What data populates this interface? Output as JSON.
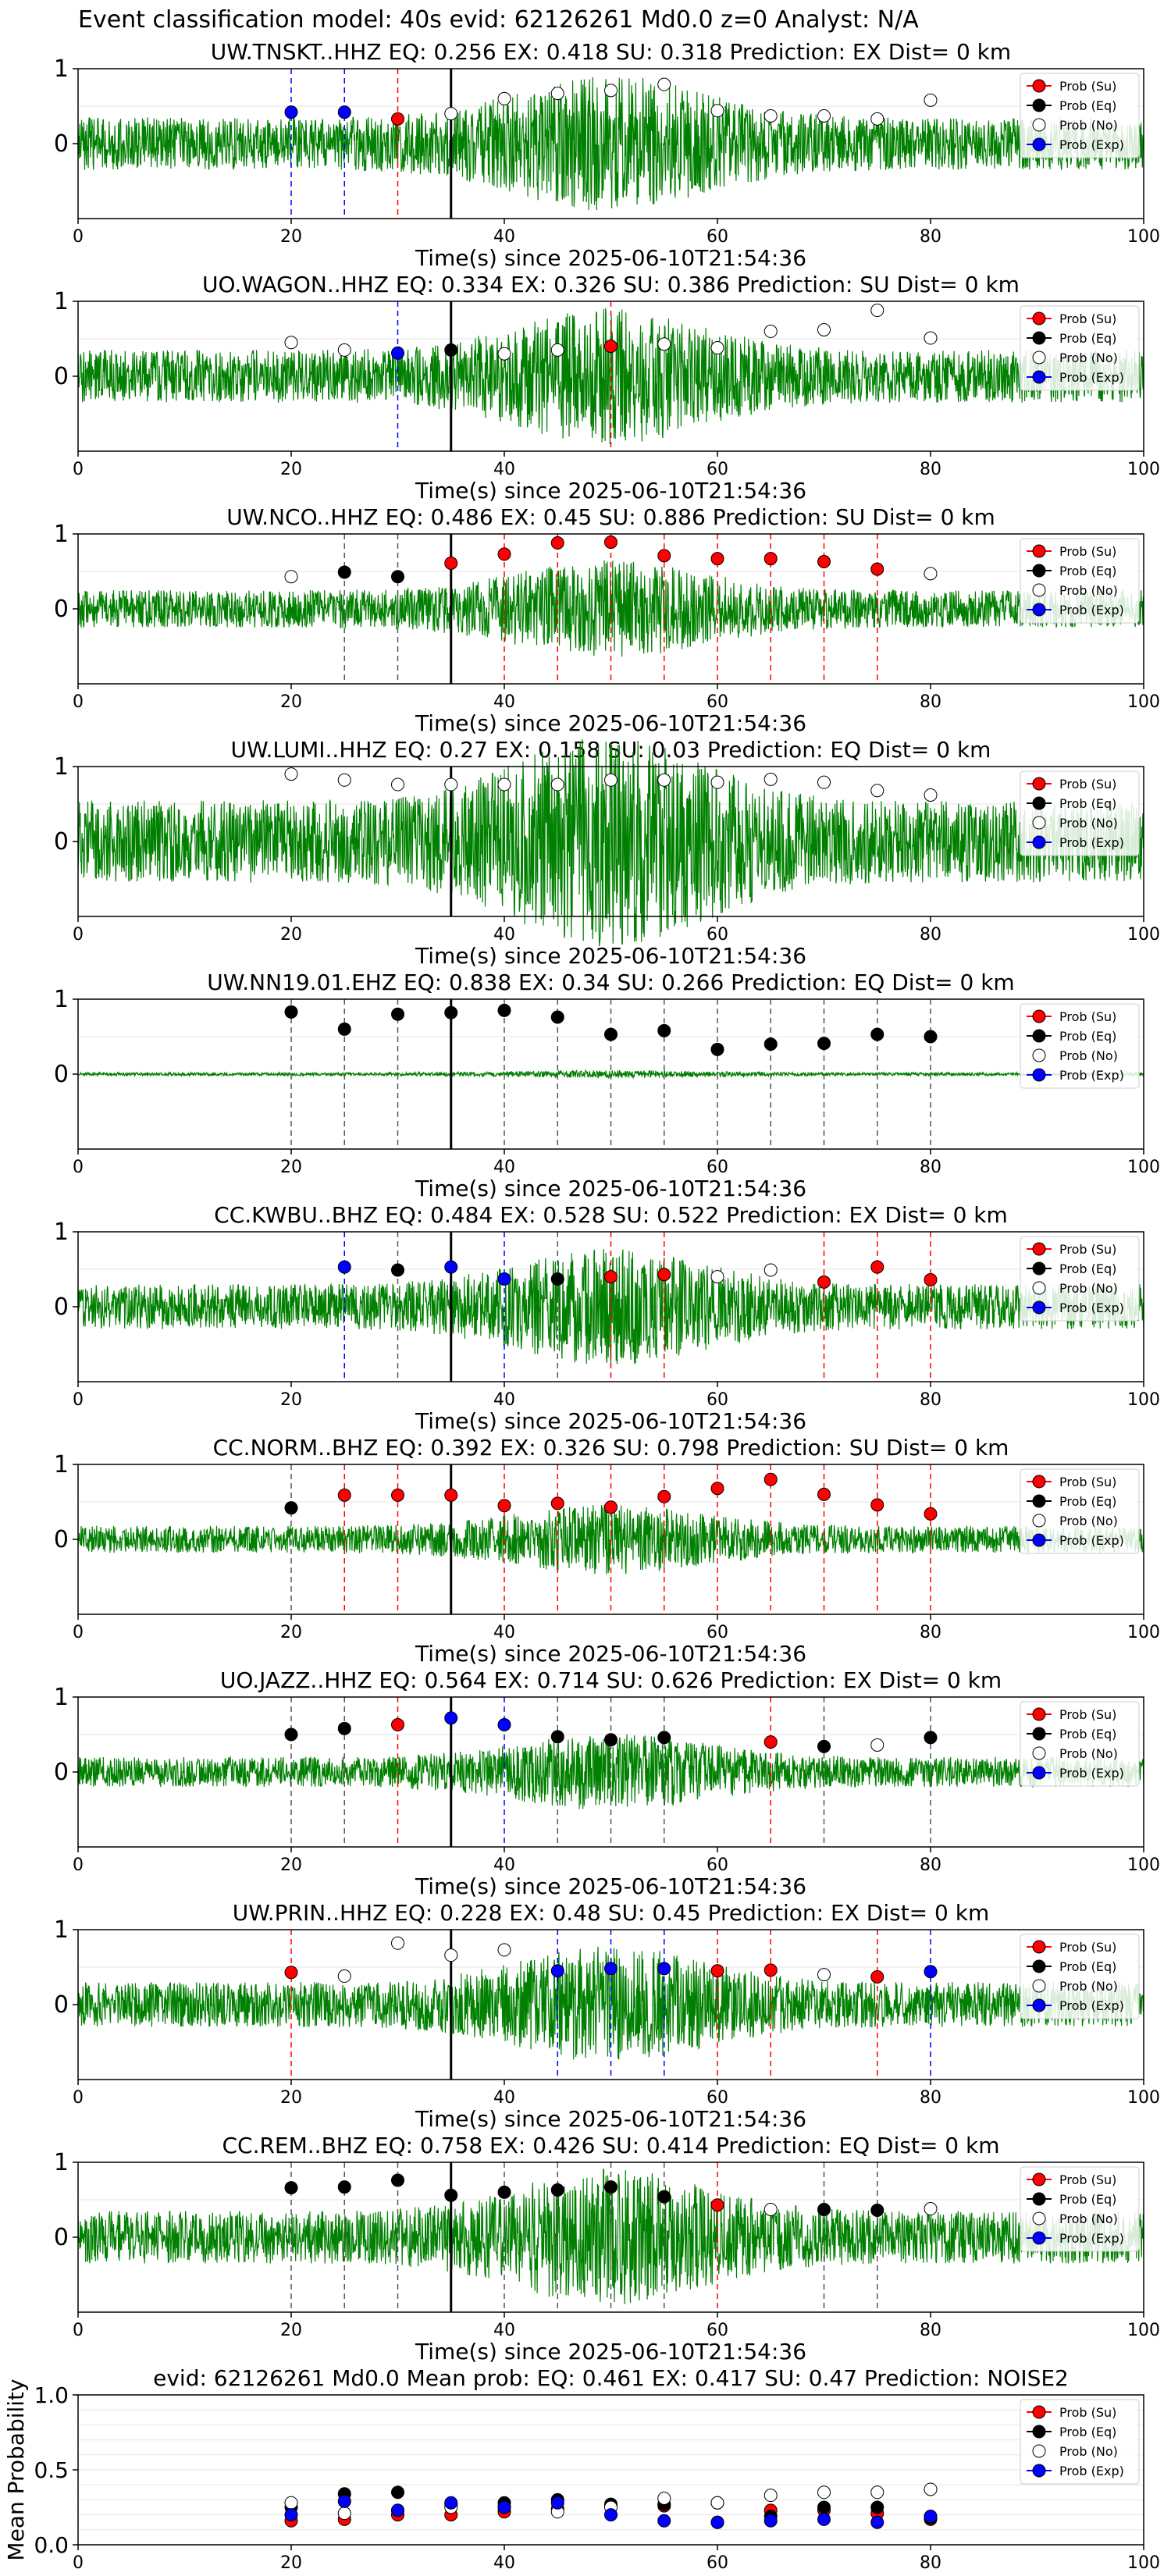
{
  "figure": {
    "suptitle": "Event classification model: 40s evid: 62126261 Md0.0 z=0 Analyst: N/A"
  },
  "legend_labels": [
    "Prob (Su)",
    "Prob (Eq)",
    "Prob (No)",
    "Prob (Exp)"
  ],
  "colors": {
    "su": "#ff0000",
    "eq": "#000000",
    "no": "#ffffff",
    "exp": "#0000ff",
    "trace": "#008000",
    "pick_line": "#000000"
  },
  "chart_data": [
    {
      "type": "line",
      "station": "UW.TNSKT..HHZ",
      "title": "UW.TNSKT..HHZ   EQ: 0.256  EX: 0.418  SU: 0.318   Prediction: EX    Dist= 0 km",
      "xlabel": "Time(s) since 2025-06-10T21:54:36",
      "xlim": [
        0,
        100
      ],
      "ylim": [
        -1,
        1
      ],
      "xticks": [
        "0",
        "20",
        "40",
        "60",
        "80",
        "100"
      ],
      "yticks": [
        "0",
        "1"
      ],
      "pick_time": 35,
      "trace_amplitude": 0.35,
      "points": [
        {
          "x": 20,
          "y": 0.42,
          "cls": "exp"
        },
        {
          "x": 25,
          "y": 0.42,
          "cls": "exp"
        },
        {
          "x": 30,
          "y": 0.33,
          "cls": "su"
        },
        {
          "x": 35,
          "y": 0.4,
          "cls": "no"
        },
        {
          "x": 40,
          "y": 0.6,
          "cls": "no"
        },
        {
          "x": 45,
          "y": 0.67,
          "cls": "no"
        },
        {
          "x": 50,
          "y": 0.71,
          "cls": "no"
        },
        {
          "x": 55,
          "y": 0.79,
          "cls": "no"
        },
        {
          "x": 60,
          "y": 0.44,
          "cls": "no"
        },
        {
          "x": 65,
          "y": 0.37,
          "cls": "no"
        },
        {
          "x": 70,
          "y": 0.37,
          "cls": "no"
        },
        {
          "x": 75,
          "y": 0.33,
          "cls": "no"
        },
        {
          "x": 80,
          "y": 0.58,
          "cls": "no"
        }
      ]
    },
    {
      "type": "line",
      "station": "UO.WAGON..HHZ",
      "title": "UO.WAGON..HHZ   EQ: 0.334  EX: 0.326  SU: 0.386   Prediction: SU    Dist= 0 km",
      "xlabel": "Time(s) since 2025-06-10T21:54:36",
      "xlim": [
        0,
        100
      ],
      "ylim": [
        -1,
        1
      ],
      "xticks": [
        "0",
        "20",
        "40",
        "60",
        "80",
        "100"
      ],
      "yticks": [
        "0",
        "1"
      ],
      "pick_time": 35,
      "trace_amplitude": 0.35,
      "points": [
        {
          "x": 20,
          "y": 0.45,
          "cls": "no"
        },
        {
          "x": 25,
          "y": 0.35,
          "cls": "no"
        },
        {
          "x": 30,
          "y": 0.31,
          "cls": "exp"
        },
        {
          "x": 35,
          "y": 0.35,
          "cls": "eq"
        },
        {
          "x": 40,
          "y": 0.3,
          "cls": "no"
        },
        {
          "x": 45,
          "y": 0.35,
          "cls": "no"
        },
        {
          "x": 50,
          "y": 0.4,
          "cls": "su"
        },
        {
          "x": 55,
          "y": 0.43,
          "cls": "no"
        },
        {
          "x": 60,
          "y": 0.38,
          "cls": "no"
        },
        {
          "x": 65,
          "y": 0.6,
          "cls": "no"
        },
        {
          "x": 70,
          "y": 0.62,
          "cls": "no"
        },
        {
          "x": 75,
          "y": 0.88,
          "cls": "no"
        },
        {
          "x": 80,
          "y": 0.51,
          "cls": "no"
        }
      ]
    },
    {
      "type": "line",
      "station": "UW.NCO..HHZ",
      "title": "UW.NCO..HHZ   EQ: 0.486  EX: 0.45  SU: 0.886   Prediction: SU    Dist= 0 km",
      "xlabel": "Time(s) since 2025-06-10T21:54:36",
      "xlim": [
        0,
        100
      ],
      "ylim": [
        -1,
        1
      ],
      "xticks": [
        "0",
        "20",
        "40",
        "60",
        "80",
        "100"
      ],
      "yticks": [
        "0",
        "1"
      ],
      "pick_time": 35,
      "trace_amplitude": 0.25,
      "points": [
        {
          "x": 20,
          "y": 0.43,
          "cls": "no"
        },
        {
          "x": 25,
          "y": 0.49,
          "cls": "eq"
        },
        {
          "x": 30,
          "y": 0.43,
          "cls": "eq"
        },
        {
          "x": 35,
          "y": 0.61,
          "cls": "su"
        },
        {
          "x": 40,
          "y": 0.73,
          "cls": "su"
        },
        {
          "x": 45,
          "y": 0.88,
          "cls": "su"
        },
        {
          "x": 50,
          "y": 0.89,
          "cls": "su"
        },
        {
          "x": 55,
          "y": 0.71,
          "cls": "su"
        },
        {
          "x": 60,
          "y": 0.67,
          "cls": "su"
        },
        {
          "x": 65,
          "y": 0.67,
          "cls": "su"
        },
        {
          "x": 70,
          "y": 0.63,
          "cls": "su"
        },
        {
          "x": 75,
          "y": 0.53,
          "cls": "su"
        },
        {
          "x": 80,
          "y": 0.47,
          "cls": "no"
        }
      ]
    },
    {
      "type": "line",
      "station": "UW.LUMI..HHZ",
      "title": "UW.LUMI..HHZ   EQ: 0.27  EX: 0.158  SU: 0.03   Prediction: EQ    Dist= 0 km",
      "xlabel": "Time(s) since 2025-06-10T21:54:36",
      "xlim": [
        0,
        100
      ],
      "ylim": [
        -1,
        1
      ],
      "xticks": [
        "0",
        "20",
        "40",
        "60",
        "80",
        "100"
      ],
      "yticks": [
        "0",
        "1"
      ],
      "pick_time": 35,
      "trace_amplitude": 0.55,
      "points": [
        {
          "x": 20,
          "y": 0.9,
          "cls": "no"
        },
        {
          "x": 25,
          "y": 0.82,
          "cls": "no"
        },
        {
          "x": 30,
          "y": 0.76,
          "cls": "no"
        },
        {
          "x": 35,
          "y": 0.76,
          "cls": "no"
        },
        {
          "x": 40,
          "y": 0.76,
          "cls": "no"
        },
        {
          "x": 45,
          "y": 0.76,
          "cls": "no"
        },
        {
          "x": 50,
          "y": 0.82,
          "cls": "no"
        },
        {
          "x": 55,
          "y": 0.82,
          "cls": "no"
        },
        {
          "x": 60,
          "y": 0.79,
          "cls": "no"
        },
        {
          "x": 65,
          "y": 0.83,
          "cls": "no"
        },
        {
          "x": 70,
          "y": 0.79,
          "cls": "no"
        },
        {
          "x": 75,
          "y": 0.68,
          "cls": "no"
        },
        {
          "x": 80,
          "y": 0.62,
          "cls": "no"
        }
      ]
    },
    {
      "type": "line",
      "station": "UW.NN19.01.EHZ",
      "title": "UW.NN19.01.EHZ   EQ: 0.838  EX: 0.34  SU: 0.266   Prediction: EQ    Dist= 0 km",
      "xlabel": "Time(s) since 2025-06-10T21:54:36",
      "xlim": [
        0,
        100
      ],
      "ylim": [
        -1,
        1
      ],
      "xticks": [
        "0",
        "20",
        "40",
        "60",
        "80",
        "100"
      ],
      "yticks": [
        "0",
        "1"
      ],
      "pick_time": 35,
      "trace_amplitude": 0.02,
      "points": [
        {
          "x": 20,
          "y": 0.83,
          "cls": "eq"
        },
        {
          "x": 25,
          "y": 0.6,
          "cls": "eq"
        },
        {
          "x": 30,
          "y": 0.8,
          "cls": "eq"
        },
        {
          "x": 35,
          "y": 0.82,
          "cls": "eq"
        },
        {
          "x": 40,
          "y": 0.85,
          "cls": "eq"
        },
        {
          "x": 45,
          "y": 0.76,
          "cls": "eq"
        },
        {
          "x": 50,
          "y": 0.53,
          "cls": "eq"
        },
        {
          "x": 55,
          "y": 0.58,
          "cls": "eq"
        },
        {
          "x": 60,
          "y": 0.33,
          "cls": "eq"
        },
        {
          "x": 65,
          "y": 0.4,
          "cls": "eq"
        },
        {
          "x": 70,
          "y": 0.41,
          "cls": "eq"
        },
        {
          "x": 75,
          "y": 0.53,
          "cls": "eq"
        },
        {
          "x": 80,
          "y": 0.5,
          "cls": "eq"
        }
      ]
    },
    {
      "type": "line",
      "station": "CC.KWBU..BHZ",
      "title": "CC.KWBU..BHZ   EQ: 0.484  EX: 0.528  SU: 0.522   Prediction: EX    Dist= 0 km",
      "xlabel": "Time(s) since 2025-06-10T21:54:36",
      "xlim": [
        0,
        100
      ],
      "ylim": [
        -1,
        1
      ],
      "xticks": [
        "0",
        "20",
        "40",
        "60",
        "80",
        "100"
      ],
      "yticks": [
        "0",
        "1"
      ],
      "pick_time": 35,
      "trace_amplitude": 0.3,
      "points": [
        {
          "x": 25,
          "y": 0.53,
          "cls": "exp"
        },
        {
          "x": 30,
          "y": 0.49,
          "cls": "eq"
        },
        {
          "x": 35,
          "y": 0.53,
          "cls": "exp"
        },
        {
          "x": 40,
          "y": 0.37,
          "cls": "exp"
        },
        {
          "x": 45,
          "y": 0.37,
          "cls": "eq"
        },
        {
          "x": 50,
          "y": 0.4,
          "cls": "su"
        },
        {
          "x": 55,
          "y": 0.43,
          "cls": "su"
        },
        {
          "x": 60,
          "y": 0.4,
          "cls": "no"
        },
        {
          "x": 65,
          "y": 0.49,
          "cls": "no"
        },
        {
          "x": 70,
          "y": 0.33,
          "cls": "su"
        },
        {
          "x": 75,
          "y": 0.53,
          "cls": "su"
        },
        {
          "x": 80,
          "y": 0.36,
          "cls": "su"
        }
      ]
    },
    {
      "type": "line",
      "station": "CC.NORM..BHZ",
      "title": "CC.NORM..BHZ   EQ: 0.392  EX: 0.326  SU: 0.798   Prediction: SU    Dist= 0 km",
      "xlabel": "Time(s) since 2025-06-10T21:54:36",
      "xlim": [
        0,
        100
      ],
      "ylim": [
        -1,
        1
      ],
      "xticks": [
        "0",
        "20",
        "40",
        "60",
        "80",
        "100"
      ],
      "yticks": [
        "0",
        "1"
      ],
      "pick_time": 35,
      "trace_amplitude": 0.18,
      "points": [
        {
          "x": 20,
          "y": 0.42,
          "cls": "eq"
        },
        {
          "x": 25,
          "y": 0.59,
          "cls": "su"
        },
        {
          "x": 30,
          "y": 0.59,
          "cls": "su"
        },
        {
          "x": 35,
          "y": 0.59,
          "cls": "su"
        },
        {
          "x": 40,
          "y": 0.45,
          "cls": "su"
        },
        {
          "x": 45,
          "y": 0.48,
          "cls": "su"
        },
        {
          "x": 50,
          "y": 0.43,
          "cls": "su"
        },
        {
          "x": 55,
          "y": 0.57,
          "cls": "su"
        },
        {
          "x": 60,
          "y": 0.68,
          "cls": "su"
        },
        {
          "x": 65,
          "y": 0.8,
          "cls": "su"
        },
        {
          "x": 70,
          "y": 0.6,
          "cls": "su"
        },
        {
          "x": 75,
          "y": 0.46,
          "cls": "su"
        },
        {
          "x": 80,
          "y": 0.34,
          "cls": "su"
        }
      ]
    },
    {
      "type": "line",
      "station": "UO.JAZZ..HHZ",
      "title": "UO.JAZZ..HHZ   EQ: 0.564  EX: 0.714  SU: 0.626   Prediction: EX    Dist= 0 km",
      "xlabel": "Time(s) since 2025-06-10T21:54:36",
      "xlim": [
        0,
        100
      ],
      "ylim": [
        -1,
        1
      ],
      "xticks": [
        "0",
        "20",
        "40",
        "60",
        "80",
        "100"
      ],
      "yticks": [
        "0",
        "1"
      ],
      "pick_time": 35,
      "trace_amplitude": 0.2,
      "points": [
        {
          "x": 20,
          "y": 0.5,
          "cls": "eq"
        },
        {
          "x": 25,
          "y": 0.58,
          "cls": "eq"
        },
        {
          "x": 30,
          "y": 0.63,
          "cls": "su"
        },
        {
          "x": 35,
          "y": 0.72,
          "cls": "exp"
        },
        {
          "x": 40,
          "y": 0.63,
          "cls": "exp"
        },
        {
          "x": 45,
          "y": 0.47,
          "cls": "eq"
        },
        {
          "x": 50,
          "y": 0.43,
          "cls": "eq"
        },
        {
          "x": 55,
          "y": 0.46,
          "cls": "eq"
        },
        {
          "x": 65,
          "y": 0.4,
          "cls": "su"
        },
        {
          "x": 70,
          "y": 0.34,
          "cls": "eq"
        },
        {
          "x": 75,
          "y": 0.36,
          "cls": "no"
        },
        {
          "x": 80,
          "y": 0.46,
          "cls": "eq"
        }
      ]
    },
    {
      "type": "line",
      "station": "UW.PRIN..HHZ",
      "title": "UW.PRIN..HHZ   EQ: 0.228  EX: 0.48  SU: 0.45   Prediction: EX    Dist= 0 km",
      "xlabel": "Time(s) since 2025-06-10T21:54:36",
      "xlim": [
        0,
        100
      ],
      "ylim": [
        -1,
        1
      ],
      "xticks": [
        "0",
        "20",
        "40",
        "60",
        "80",
        "100"
      ],
      "yticks": [
        "0",
        "1"
      ],
      "pick_time": 35,
      "trace_amplitude": 0.3,
      "points": [
        {
          "x": 20,
          "y": 0.43,
          "cls": "su"
        },
        {
          "x": 25,
          "y": 0.38,
          "cls": "no"
        },
        {
          "x": 30,
          "y": 0.82,
          "cls": "no"
        },
        {
          "x": 35,
          "y": 0.66,
          "cls": "no"
        },
        {
          "x": 40,
          "y": 0.73,
          "cls": "no"
        },
        {
          "x": 45,
          "y": 0.45,
          "cls": "exp"
        },
        {
          "x": 50,
          "y": 0.48,
          "cls": "exp"
        },
        {
          "x": 55,
          "y": 0.48,
          "cls": "exp"
        },
        {
          "x": 60,
          "y": 0.45,
          "cls": "su"
        },
        {
          "x": 65,
          "y": 0.46,
          "cls": "su"
        },
        {
          "x": 70,
          "y": 0.4,
          "cls": "no"
        },
        {
          "x": 75,
          "y": 0.37,
          "cls": "su"
        },
        {
          "x": 80,
          "y": 0.44,
          "cls": "exp"
        }
      ]
    },
    {
      "type": "line",
      "station": "CC.REM..BHZ",
      "title": "CC.REM..BHZ   EQ: 0.758  EX: 0.426  SU: 0.414   Prediction: EQ    Dist= 0 km",
      "xlabel": "Time(s) since 2025-06-10T21:54:36",
      "xlim": [
        0,
        100
      ],
      "ylim": [
        -1,
        1
      ],
      "xticks": [
        "0",
        "20",
        "40",
        "60",
        "80",
        "100"
      ],
      "yticks": [
        "0",
        "1"
      ],
      "pick_time": 35,
      "trace_amplitude": 0.35,
      "points": [
        {
          "x": 20,
          "y": 0.66,
          "cls": "eq"
        },
        {
          "x": 25,
          "y": 0.67,
          "cls": "eq"
        },
        {
          "x": 30,
          "y": 0.76,
          "cls": "eq"
        },
        {
          "x": 35,
          "y": 0.56,
          "cls": "eq"
        },
        {
          "x": 40,
          "y": 0.6,
          "cls": "eq"
        },
        {
          "x": 45,
          "y": 0.63,
          "cls": "eq"
        },
        {
          "x": 50,
          "y": 0.67,
          "cls": "eq"
        },
        {
          "x": 55,
          "y": 0.54,
          "cls": "eq"
        },
        {
          "x": 60,
          "y": 0.43,
          "cls": "su"
        },
        {
          "x": 65,
          "y": 0.37,
          "cls": "no"
        },
        {
          "x": 70,
          "y": 0.37,
          "cls": "eq"
        },
        {
          "x": 75,
          "y": 0.36,
          "cls": "eq"
        },
        {
          "x": 80,
          "y": 0.38,
          "cls": "no"
        }
      ]
    },
    {
      "type": "scatter",
      "station": "mean",
      "title": "evid: 62126261  Md0.0   Mean prob:   EQ: 0.461  EX: 0.417  SU: 0.47   Prediction: NOISE2",
      "xlabel": "",
      "ylabel": "Mean Probability",
      "xlim": [
        0,
        100
      ],
      "ylim": [
        0,
        1
      ],
      "xticks": [
        "0",
        "20",
        "40",
        "60",
        "80",
        "100"
      ],
      "yticks": [
        "0.0",
        "0.5",
        "1.0"
      ],
      "series": [
        {
          "cls": "su",
          "x": [
            20,
            25,
            30,
            35,
            40,
            45,
            50,
            55,
            60,
            65,
            70,
            75,
            80
          ],
          "y": [
            0.16,
            0.17,
            0.2,
            0.2,
            0.22,
            0.24,
            0.26,
            0.26,
            0.28,
            0.23,
            0.23,
            0.21,
            0.17
          ]
        },
        {
          "cls": "eq",
          "x": [
            20,
            25,
            30,
            35,
            40,
            45,
            50,
            55,
            60,
            65,
            70,
            75,
            80
          ],
          "y": [
            0.25,
            0.34,
            0.35,
            0.27,
            0.28,
            0.3,
            0.27,
            0.27,
            0.15,
            0.19,
            0.25,
            0.25,
            0.18
          ]
        },
        {
          "cls": "no",
          "x": [
            20,
            25,
            30,
            35,
            40,
            45,
            50,
            55,
            60,
            65,
            70,
            75,
            80
          ],
          "y": [
            0.28,
            0.21,
            0.23,
            0.25,
            0.25,
            0.22,
            0.25,
            0.31,
            0.28,
            0.33,
            0.35,
            0.35,
            0.37
          ]
        },
        {
          "cls": "exp",
          "x": [
            20,
            25,
            30,
            35,
            40,
            45,
            50,
            55,
            60,
            65,
            70,
            75,
            80
          ],
          "y": [
            0.2,
            0.29,
            0.23,
            0.28,
            0.25,
            0.28,
            0.2,
            0.16,
            0.15,
            0.16,
            0.17,
            0.15,
            0.19
          ]
        }
      ]
    }
  ]
}
